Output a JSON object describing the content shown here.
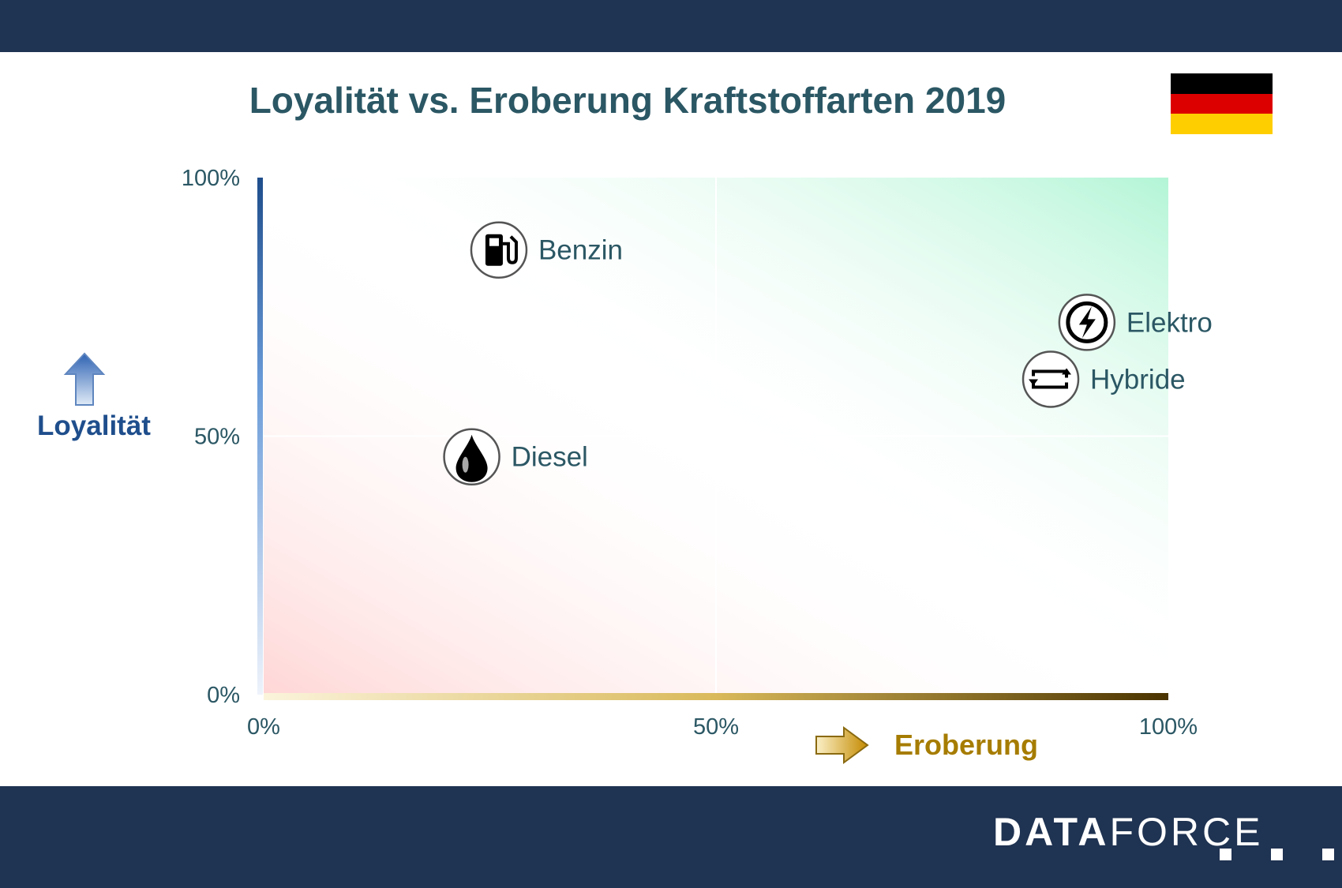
{
  "chart_data": {
    "type": "scatter",
    "title": "Loyalität vs. Eroberung Kraftstoffarten 2019",
    "xlabel": "Eroberung",
    "ylabel": "Loyalität",
    "xlim": [
      0,
      100
    ],
    "ylim": [
      0,
      100
    ],
    "x_ticks": [
      "0%",
      "50%",
      "100%"
    ],
    "y_ticks": [
      "0%",
      "50%",
      "100%"
    ],
    "points": [
      {
        "name": "Benzin",
        "x": 26,
        "y": 86,
        "icon": "fuel-pump-icon"
      },
      {
        "name": "Diesel",
        "x": 23,
        "y": 46,
        "icon": "oil-drop-icon"
      },
      {
        "name": "Elektro",
        "x": 91,
        "y": 72,
        "icon": "lightning-icon"
      },
      {
        "name": "Hybride",
        "x": 87,
        "y": 61,
        "icon": "hybrid-cycle-icon"
      }
    ],
    "colors": {
      "title": "#2b5764",
      "loyalty": "#1f4e8c",
      "conquest": "#a67c00",
      "tick": "#2b5764"
    }
  },
  "flag": {
    "country": "Deutschland",
    "colors": [
      "#000000",
      "#dd0000",
      "#ffce00"
    ]
  },
  "footer": {
    "logo_bold": "DATA",
    "logo_light": "FORCE"
  }
}
